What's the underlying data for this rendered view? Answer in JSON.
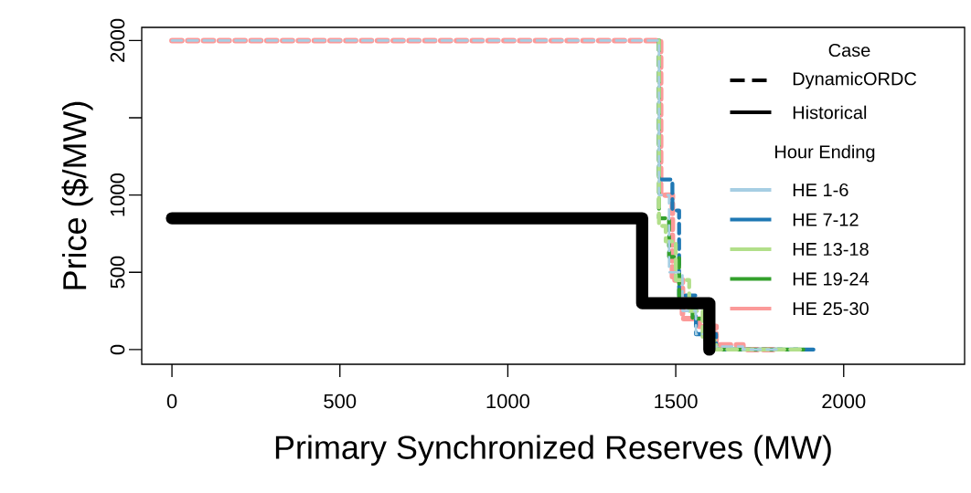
{
  "chart_data": {
    "type": "step",
    "xlabel": "Primary Synchronized Reserves (MW)",
    "ylabel": "Price ($/MW)",
    "xlim": [
      -90,
      2360
    ],
    "ylim": [
      -95,
      2085
    ],
    "xticks": [
      0,
      500,
      1000,
      1500,
      2000
    ],
    "yticks": [
      0,
      500,
      1000,
      {
        "value": 1500,
        "label": null
      },
      2000
    ],
    "grid": false,
    "legend": "right",
    "annotations": [
      "Case",
      "DynamicORDC",
      "Hour Ending"
    ],
    "series": [
      {
        "name": "HE 1-6",
        "color": "#a6cee3",
        "line_style": "dashed",
        "x": [
          0,
          1450,
          1480,
          1520,
          1560,
          1600,
          1700,
          1800
        ],
        "values": [
          2000,
          1000,
          500,
          250,
          100,
          20,
          0,
          0
        ]
      },
      {
        "name": "HE 7-12",
        "color": "#1f78b4",
        "line_style": "dashed",
        "x": [
          1450,
          1450,
          1490,
          1510,
          1560,
          1620,
          1910
        ],
        "values": [
          2000,
          1100,
          900,
          350,
          100,
          0,
          0
        ]
      },
      {
        "name": "HE 13-18",
        "color": "#b2df8a",
        "line_style": "dashed",
        "x": [
          1450,
          1450,
          1470,
          1500,
          1540,
          1580,
          1620,
          1870
        ],
        "values": [
          2000,
          800,
          700,
          450,
          250,
          60,
          0,
          0
        ]
      },
      {
        "name": "HE 19-24",
        "color": "#33a02c",
        "line_style": "dashed",
        "x": [
          1450,
          1450,
          1480,
          1510,
          1550,
          1610,
          1880
        ],
        "values": [
          2000,
          850,
          600,
          300,
          200,
          0,
          0
        ]
      },
      {
        "name": "HE 25-30",
        "color": "#fb9a99",
        "line_style": "dashed",
        "x": [
          0,
          1455,
          1490,
          1520,
          1570,
          1620,
          1700,
          1790
        ],
        "values": [
          2000,
          1000,
          450,
          200,
          150,
          30,
          0,
          0
        ]
      },
      {
        "name": "Historical",
        "color": "#000000",
        "line_style": "solid",
        "x": [
          0,
          1400,
          1600,
          1600
        ],
        "values": [
          850,
          300,
          0,
          0
        ]
      }
    ]
  }
}
